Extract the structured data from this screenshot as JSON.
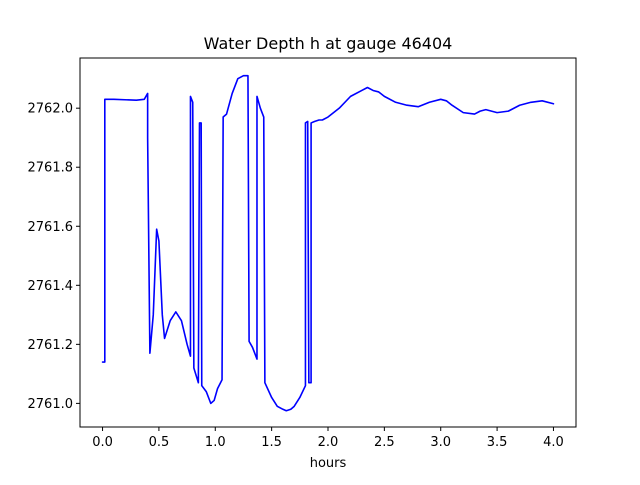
{
  "chart_data": {
    "type": "line",
    "title": "Water Depth h at gauge 46404",
    "xlabel": "hours",
    "ylabel": "",
    "xlim": [
      -0.2,
      4.2
    ],
    "ylim": [
      2760.92,
      2762.17
    ],
    "x_ticks": [
      0.0,
      0.5,
      1.0,
      1.5,
      2.0,
      2.5,
      3.0,
      3.5,
      4.0
    ],
    "x_tick_labels": [
      "0.0",
      "0.5",
      "1.0",
      "1.5",
      "2.0",
      "2.5",
      "3.0",
      "3.5",
      "4.0"
    ],
    "y_ticks": [
      2761.0,
      2761.2,
      2761.4,
      2761.6,
      2761.8,
      2762.0
    ],
    "y_tick_labels": [
      "2761.0",
      "2761.2",
      "2761.4",
      "2761.6",
      "2761.8",
      "2762.0"
    ],
    "grid": false,
    "legend": "none",
    "series": [
      {
        "color": "#0000ff",
        "points": [
          [
            0.0,
            2761.14
          ],
          [
            0.02,
            2761.14
          ],
          [
            0.02,
            2762.03
          ],
          [
            0.1,
            2762.03
          ],
          [
            0.3,
            2762.027
          ],
          [
            0.37,
            2762.03
          ],
          [
            0.4,
            2762.05
          ],
          [
            0.4,
            2761.9
          ],
          [
            0.42,
            2761.17
          ],
          [
            0.45,
            2761.3
          ],
          [
            0.48,
            2761.59
          ],
          [
            0.5,
            2761.55
          ],
          [
            0.53,
            2761.3
          ],
          [
            0.55,
            2761.22
          ],
          [
            0.6,
            2761.28
          ],
          [
            0.65,
            2761.31
          ],
          [
            0.7,
            2761.28
          ],
          [
            0.75,
            2761.2
          ],
          [
            0.78,
            2761.16
          ],
          [
            0.78,
            2762.04
          ],
          [
            0.8,
            2762.02
          ],
          [
            0.81,
            2761.12
          ],
          [
            0.85,
            2761.07
          ],
          [
            0.86,
            2761.95
          ],
          [
            0.875,
            2761.95
          ],
          [
            0.88,
            2761.06
          ],
          [
            0.92,
            2761.04
          ],
          [
            0.96,
            2761.0
          ],
          [
            0.99,
            2761.01
          ],
          [
            1.02,
            2761.05
          ],
          [
            1.06,
            2761.08
          ],
          [
            1.07,
            2761.97
          ],
          [
            1.1,
            2761.98
          ],
          [
            1.15,
            2762.05
          ],
          [
            1.2,
            2762.1
          ],
          [
            1.25,
            2762.11
          ],
          [
            1.29,
            2762.11
          ],
          [
            1.3,
            2761.21
          ],
          [
            1.33,
            2761.19
          ],
          [
            1.37,
            2761.15
          ],
          [
            1.37,
            2762.04
          ],
          [
            1.4,
            2762.0
          ],
          [
            1.43,
            2761.97
          ],
          [
            1.44,
            2761.07
          ],
          [
            1.5,
            2761.02
          ],
          [
            1.55,
            2760.99
          ],
          [
            1.6,
            2760.98
          ],
          [
            1.63,
            2760.975
          ],
          [
            1.67,
            2760.98
          ],
          [
            1.7,
            2760.99
          ],
          [
            1.75,
            2761.02
          ],
          [
            1.8,
            2761.06
          ],
          [
            1.8,
            2761.95
          ],
          [
            1.82,
            2761.955
          ],
          [
            1.83,
            2761.07
          ],
          [
            1.85,
            2761.07
          ],
          [
            1.85,
            2761.95
          ],
          [
            1.88,
            2761.955
          ],
          [
            1.92,
            2761.96
          ],
          [
            1.95,
            2761.96
          ],
          [
            2.0,
            2761.97
          ],
          [
            2.1,
            2762.0
          ],
          [
            2.2,
            2762.04
          ],
          [
            2.3,
            2762.06
          ],
          [
            2.35,
            2762.07
          ],
          [
            2.4,
            2762.06
          ],
          [
            2.45,
            2762.055
          ],
          [
            2.5,
            2762.04
          ],
          [
            2.6,
            2762.02
          ],
          [
            2.7,
            2762.01
          ],
          [
            2.8,
            2762.005
          ],
          [
            2.9,
            2762.02
          ],
          [
            3.0,
            2762.03
          ],
          [
            3.05,
            2762.025
          ],
          [
            3.1,
            2762.01
          ],
          [
            3.2,
            2761.985
          ],
          [
            3.3,
            2761.98
          ],
          [
            3.35,
            2761.99
          ],
          [
            3.4,
            2761.995
          ],
          [
            3.5,
            2761.985
          ],
          [
            3.6,
            2761.99
          ],
          [
            3.7,
            2762.01
          ],
          [
            3.8,
            2762.02
          ],
          [
            3.9,
            2762.025
          ],
          [
            4.0,
            2762.015
          ]
        ]
      }
    ]
  }
}
